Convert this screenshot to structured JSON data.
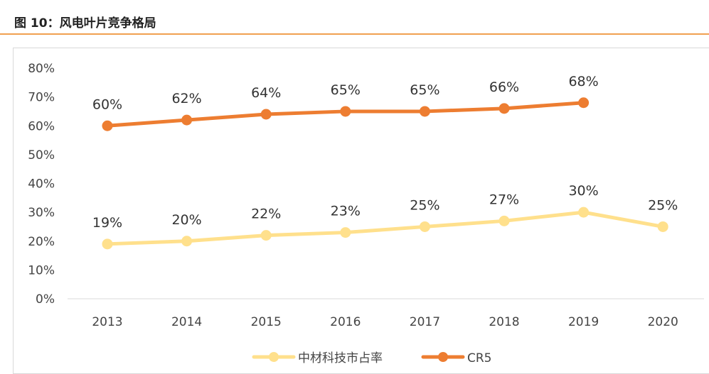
{
  "figure": {
    "title": "图 10：风电叶片竞争格局"
  },
  "chart_data": {
    "type": "line",
    "categories": [
      "2013",
      "2014",
      "2015",
      "2016",
      "2017",
      "2018",
      "2019",
      "2020"
    ],
    "series": [
      {
        "name": "中材科技市占率",
        "color": "#ffe08c",
        "values": [
          19,
          20,
          22,
          23,
          25,
          27,
          30,
          25
        ],
        "labels": [
          "19%",
          "20%",
          "22%",
          "23%",
          "25%",
          "27%",
          "30%",
          "25%"
        ]
      },
      {
        "name": "CR5",
        "color": "#ed7d31",
        "values": [
          60,
          62,
          64,
          65,
          65,
          66,
          68,
          null
        ],
        "labels": [
          "60%",
          "62%",
          "64%",
          "65%",
          "65%",
          "66%",
          "68%",
          null
        ]
      }
    ],
    "ylim": [
      0,
      80
    ],
    "yticks": [
      "0%",
      "10%",
      "20%",
      "30%",
      "40%",
      "50%",
      "60%",
      "70%",
      "80%"
    ],
    "xlabel": "",
    "ylabel": "",
    "grid": false,
    "legend": "bottom-center"
  }
}
